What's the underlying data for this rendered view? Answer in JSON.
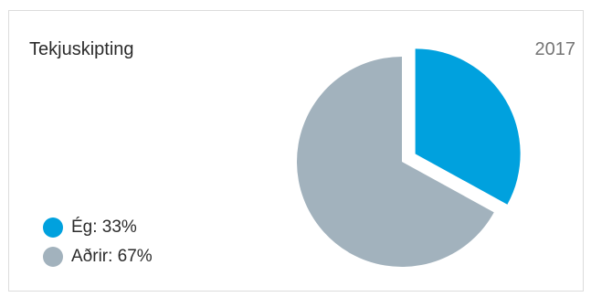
{
  "header": {
    "title": "Tekjuskipting",
    "year": "2017"
  },
  "chart_data": {
    "type": "pie",
    "title": "Tekjuskipting",
    "subtitle": "2017",
    "legend_position": "bottom-left",
    "slices": [
      {
        "label": "Ég",
        "value": 33,
        "legend": "Ég: 33%",
        "color": "#00a1de",
        "exploded": true
      },
      {
        "label": "Aðrir",
        "value": 67,
        "legend": "Aðrir: 67%",
        "color": "#a2b2bd",
        "exploded": false
      }
    ]
  }
}
